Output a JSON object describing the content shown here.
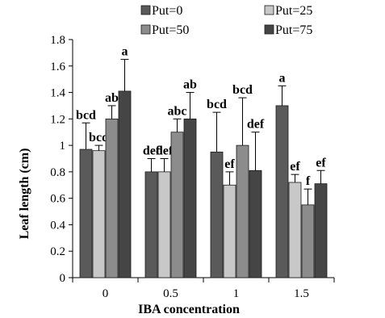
{
  "chart_data": {
    "type": "bar",
    "title": "",
    "xlabel": "IBA concentration",
    "ylabel": "Leaf length (cm)",
    "categories": [
      "0",
      "0.5",
      "1",
      "1.5"
    ],
    "ylim": [
      0,
      1.8
    ],
    "yticks": [
      "0",
      "0.2",
      "0.4",
      "0.6",
      "0.8",
      "1",
      "1.2",
      "1.4",
      "1.6",
      "1.8"
    ],
    "grid": false,
    "legend_position": "top",
    "series": [
      {
        "name": "Put=0",
        "color": "#5a5a5a",
        "values": [
          0.97,
          0.8,
          0.95,
          1.3
        ],
        "errors": [
          0.2,
          0.1,
          0.3,
          0.15
        ],
        "labels": [
          "bcd",
          "def",
          "bcd",
          "a"
        ]
      },
      {
        "name": "Put=25",
        "color": "#c8c8c8",
        "values": [
          0.96,
          0.8,
          0.7,
          0.72
        ],
        "errors": [
          0.04,
          0.1,
          0.1,
          0.06
        ],
        "labels": [
          "bcd",
          "def",
          "ef",
          "ef"
        ]
      },
      {
        "name": "Put=50",
        "color": "#8c8c8c",
        "values": [
          1.2,
          1.1,
          1.0,
          0.55
        ],
        "errors": [
          0.1,
          0.1,
          0.36,
          0.12
        ],
        "labels": [
          "ab",
          "abc",
          "bcd",
          "f"
        ]
      },
      {
        "name": "Put=75",
        "color": "#454545",
        "values": [
          1.41,
          1.2,
          0.81,
          0.71
        ],
        "errors": [
          0.24,
          0.2,
          0.29,
          0.1
        ],
        "labels": [
          "a",
          "ab",
          "def",
          "ef"
        ]
      }
    ]
  }
}
